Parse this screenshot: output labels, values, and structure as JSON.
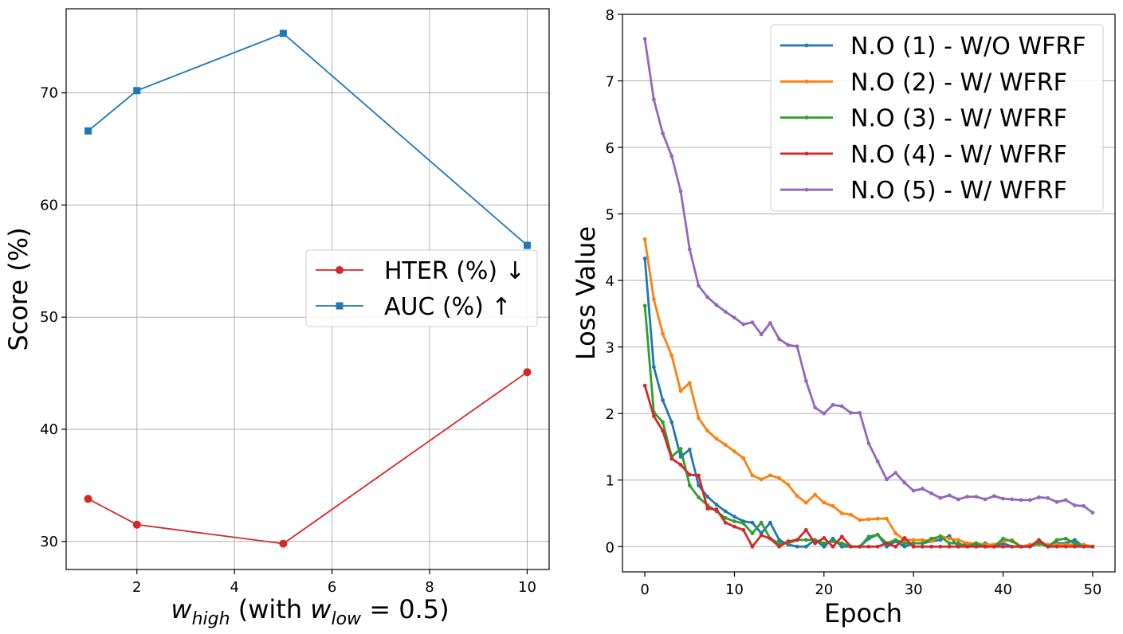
{
  "colors": {
    "hter": "#d62728",
    "auc": "#1f77b4",
    "no1": "#1f77b4",
    "no2": "#ff7f0e",
    "no3": "#2ca02c",
    "no4": "#d62728",
    "no5": "#9467bd"
  },
  "chart_data": [
    {
      "type": "line",
      "xlabel": "w_high (with w_low = 0.5)",
      "xlabel_parts": {
        "var": "w",
        "sub": "high",
        "mid": " (with ",
        "var2": "w",
        "sub2": "low",
        "eq": " = 0.5)"
      },
      "ylabel": "Score (%)",
      "xlim": [
        0.55,
        10.45
      ],
      "ylim": [
        27.5,
        77.5
      ],
      "xticks": [
        2,
        4,
        6,
        8,
        10
      ],
      "yticks": [
        30,
        40,
        50,
        60,
        70
      ],
      "grid": true,
      "legend_position": "center-right",
      "x": [
        1,
        2,
        5,
        10
      ],
      "series": [
        {
          "name": "HTER (%) ↓",
          "marker": "circle",
          "color_key": "hter",
          "values": [
            33.8,
            31.5,
            29.8,
            45.1
          ]
        },
        {
          "name": "AUC (%) ↑",
          "marker": "square",
          "color_key": "auc",
          "values": [
            66.6,
            70.2,
            75.3,
            56.4
          ]
        }
      ]
    },
    {
      "type": "line",
      "xlabel": "Epoch",
      "ylabel": "Loss Value",
      "xlim": [
        -2.5,
        52.5
      ],
      "ylim": [
        -0.38,
        8.0
      ],
      "xticks": [
        0,
        10,
        20,
        30,
        40,
        50
      ],
      "yticks": [
        0,
        1,
        2,
        3,
        4,
        5,
        6,
        7,
        8
      ],
      "grid": "y",
      "legend_position": "upper-right",
      "series": [
        {
          "name": "N.O (1) - W/O WFRF",
          "color_key": "no1",
          "values": [
            4.33,
            2.7,
            2.2,
            1.87,
            1.35,
            1.46,
            0.92,
            0.75,
            0.63,
            0.53,
            0.45,
            0.38,
            0.36,
            0.2,
            0.36,
            0.1,
            0.03,
            0.0,
            0.0,
            0.1,
            0.0,
            0.12,
            0.0,
            0.0,
            0.0,
            0.12,
            0.18,
            0.0,
            0.08,
            0.0,
            0.05,
            0.05,
            0.08,
            0.1,
            0.16,
            0.0,
            0.05,
            0.0,
            0.05,
            0.0,
            0.05,
            0.0,
            0.0,
            0.0,
            0.05,
            0.0,
            0.05,
            0.05,
            0.1,
            0.0,
            0.0
          ]
        },
        {
          "name": "N.O (2) - W/ WFRF",
          "color_key": "no2",
          "values": [
            4.62,
            3.72,
            3.2,
            2.87,
            2.34,
            2.46,
            1.93,
            1.74,
            1.62,
            1.53,
            1.43,
            1.33,
            1.07,
            1.01,
            1.07,
            1.03,
            0.93,
            0.76,
            0.66,
            0.78,
            0.66,
            0.61,
            0.5,
            0.48,
            0.4,
            0.41,
            0.42,
            0.42,
            0.2,
            0.1,
            0.1,
            0.1,
            0.08,
            0.16,
            0.12,
            0.1,
            0.05,
            0.05,
            0.03,
            0.03,
            0.08,
            0.1,
            0.0,
            0.03,
            0.03,
            0.03,
            0.03,
            0.03,
            0.03,
            0.03,
            0.0
          ]
        },
        {
          "name": "N.O (3) - W/ WFRF",
          "color_key": "no3",
          "values": [
            3.62,
            2.02,
            1.87,
            1.35,
            1.47,
            0.92,
            0.74,
            0.62,
            0.53,
            0.43,
            0.38,
            0.35,
            0.2,
            0.36,
            0.12,
            0.05,
            0.05,
            0.1,
            0.1,
            0.1,
            0.05,
            0.08,
            0.05,
            0.0,
            0.0,
            0.15,
            0.18,
            0.05,
            0.1,
            0.05,
            0.05,
            0.05,
            0.12,
            0.15,
            0.05,
            0.05,
            0.0,
            0.05,
            0.0,
            0.0,
            0.12,
            0.08,
            0.0,
            0.0,
            0.05,
            0.0,
            0.1,
            0.12,
            0.05,
            0.0,
            0.0
          ]
        },
        {
          "name": "N.O (4) - W/ WFRF",
          "color_key": "no4",
          "values": [
            2.42,
            1.96,
            1.74,
            1.32,
            1.23,
            1.08,
            1.07,
            0.57,
            0.56,
            0.36,
            0.3,
            0.25,
            0.0,
            0.17,
            0.12,
            0.0,
            0.08,
            0.1,
            0.25,
            0.05,
            0.13,
            0.0,
            0.15,
            0.0,
            0.0,
            0.0,
            0.0,
            0.05,
            0.0,
            0.13,
            0.0,
            0.0,
            0.0,
            0.0,
            0.0,
            0.0,
            0.0,
            0.0,
            0.0,
            0.0,
            0.0,
            0.0,
            0.0,
            0.0,
            0.1,
            0.0,
            0.0,
            0.0,
            0.0,
            0.0,
            0.0
          ]
        },
        {
          "name": "N.O (5) - W/ WFRF",
          "color_key": "no5",
          "values": [
            7.63,
            6.72,
            6.21,
            5.87,
            5.34,
            4.47,
            3.92,
            3.75,
            3.63,
            3.53,
            3.44,
            3.34,
            3.37,
            3.19,
            3.36,
            3.12,
            3.03,
            3.01,
            2.49,
            2.09,
            2.0,
            2.13,
            2.11,
            2.01,
            2.01,
            1.55,
            1.28,
            1.01,
            1.11,
            0.96,
            0.84,
            0.87,
            0.8,
            0.73,
            0.77,
            0.71,
            0.75,
            0.75,
            0.71,
            0.76,
            0.72,
            0.71,
            0.7,
            0.7,
            0.74,
            0.73,
            0.67,
            0.7,
            0.62,
            0.61,
            0.51
          ]
        }
      ]
    }
  ]
}
